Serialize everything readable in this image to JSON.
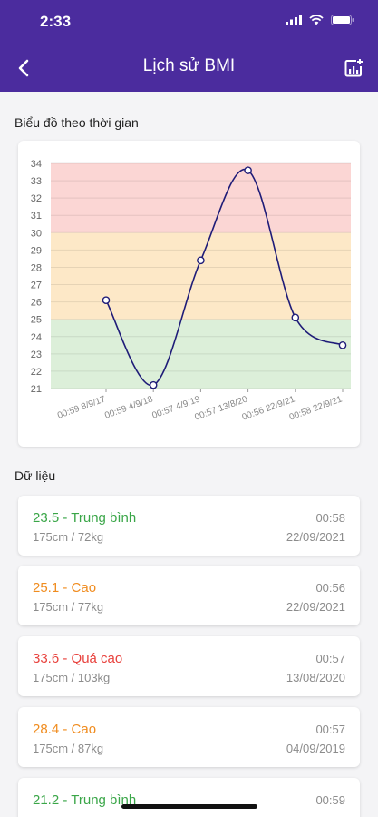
{
  "status_bar": {
    "time": "2:33"
  },
  "header": {
    "title": "Lịch sử BMI",
    "back_icon": "chevron-left-icon",
    "action_icon": "add-chart-icon"
  },
  "chart_section": {
    "label": "Biểu đồ theo thời gian"
  },
  "chart_data": {
    "type": "line",
    "title": "",
    "xlabel": "",
    "ylabel": "",
    "x": [
      "00:59 8/9/17",
      "00:59 4/9/18",
      "00:57 4/9/19",
      "00:57 13/8/20",
      "00:56 22/9/21",
      "00:58 22/9/21"
    ],
    "series": [
      {
        "values": [
          26.1,
          21.2,
          28.4,
          33.6,
          25.1,
          23.5
        ]
      }
    ],
    "ylim": [
      21,
      34
    ],
    "yticks": [
      34,
      33,
      32,
      31,
      30,
      29,
      28,
      27,
      26,
      25,
      24,
      23,
      22,
      21
    ],
    "bands": [
      {
        "from": 21,
        "to": 25,
        "color": "#dcefd9"
      },
      {
        "from": 25,
        "to": 30,
        "color": "#fde8c7"
      },
      {
        "from": 30,
        "to": 34,
        "color": "#fbd6d4"
      }
    ],
    "line_color": "#1f1c78",
    "grid": true
  },
  "data_section": {
    "label": "Dữ liệu"
  },
  "colors": {
    "normal": "#3aa648",
    "high": "#f08c1f",
    "very_high": "#e8413c",
    "primary": "#4b2c9e"
  },
  "records": [
    {
      "value": "23.5 - Trung bình",
      "detail": "175cm / 72kg",
      "time": "00:58",
      "date": "22/09/2021",
      "level": "normal"
    },
    {
      "value": "25.1 - Cao",
      "detail": "175cm / 77kg",
      "time": "00:56",
      "date": "22/09/2021",
      "level": "high"
    },
    {
      "value": "33.6 - Quá cao",
      "detail": "175cm / 103kg",
      "time": "00:57",
      "date": "13/08/2020",
      "level": "very_high"
    },
    {
      "value": "28.4 - Cao",
      "detail": "175cm / 87kg",
      "time": "00:57",
      "date": "04/09/2019",
      "level": "high"
    },
    {
      "value": "21.2 - Trung bình",
      "detail": "",
      "time": "00:59",
      "date": "",
      "level": "normal"
    }
  ]
}
